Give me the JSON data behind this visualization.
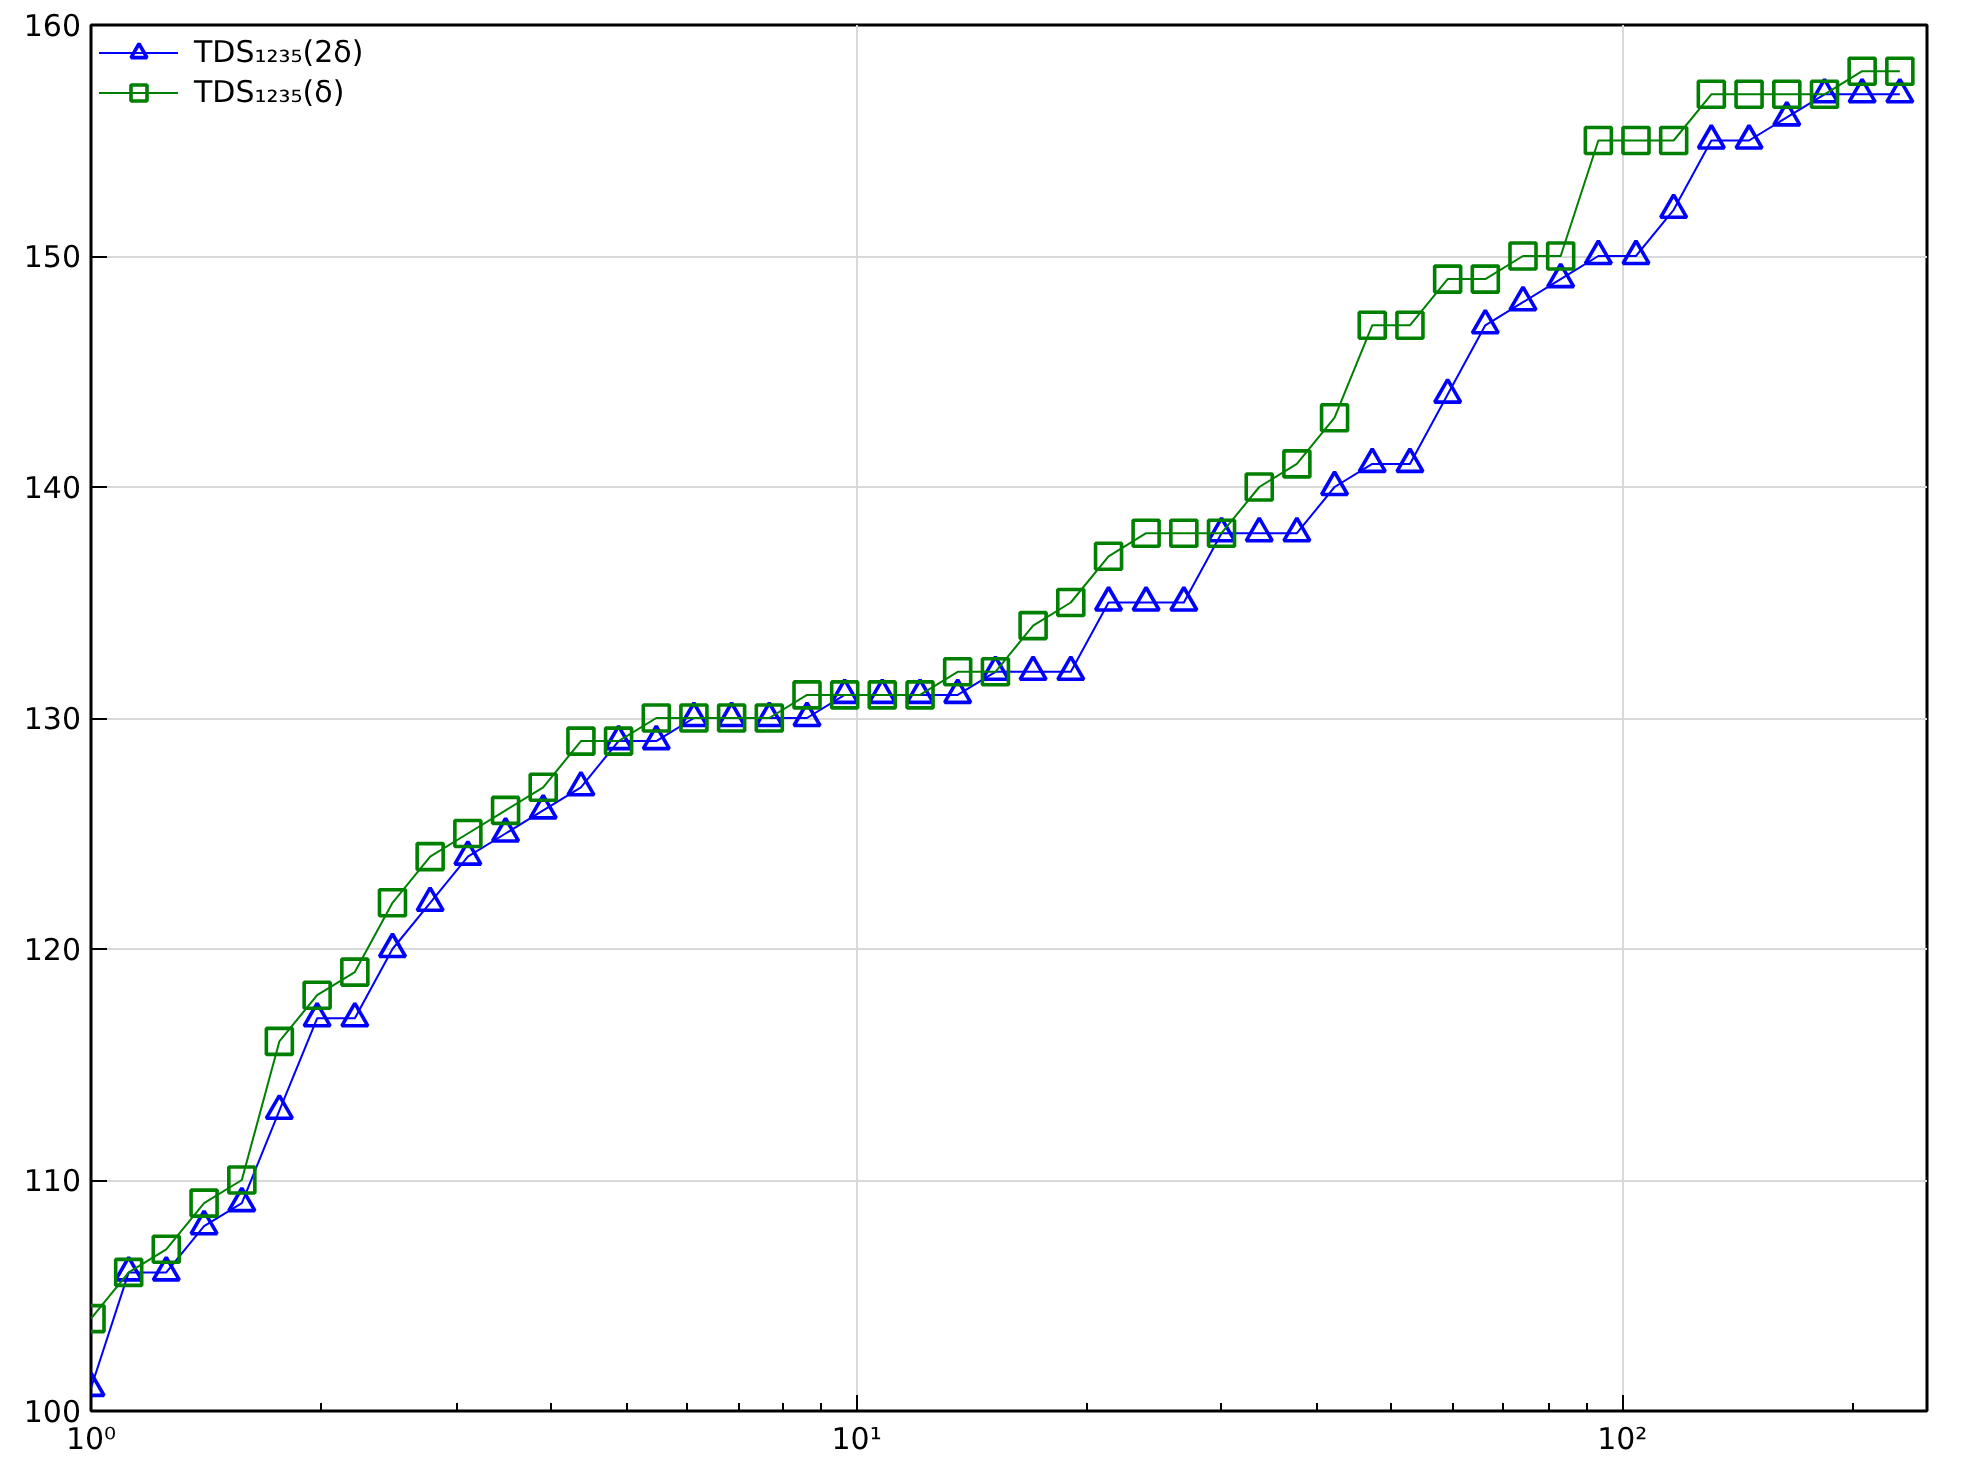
{
  "chart_data": {
    "type": "line",
    "log": "x",
    "x": [
      1,
      1.12,
      1.254,
      1.405,
      1.574,
      1.762,
      1.974,
      2.211,
      2.476,
      2.773,
      3.106,
      3.479,
      3.896,
      4.364,
      4.887,
      5.474,
      6.13,
      6.866,
      7.69,
      8.613,
      9.646,
      10.8,
      12.1,
      13.55,
      15.18,
      17.0,
      19.04,
      21.33,
      23.88,
      26.75,
      29.96,
      33.56,
      37.58,
      42.09,
      47.14,
      52.8,
      59.14,
      66.23,
      74.18,
      83.08,
      93.05,
      104.2,
      116.7,
      130.7,
      146.4,
      164.0,
      183.7,
      205.7,
      230.4
    ],
    "series": [
      {
        "name": "TDS₁₂₃₅(2δ)",
        "color": "#0000ff",
        "marker": "triangle",
        "values": [
          101,
          106,
          106,
          108,
          109,
          113,
          117,
          117,
          120,
          122,
          124,
          125,
          126,
          127,
          129,
          129,
          130,
          130,
          130,
          130,
          131,
          131,
          131,
          131,
          132,
          132,
          132,
          135,
          135,
          135,
          138,
          138,
          138,
          140,
          141,
          141,
          144,
          147,
          148,
          149,
          150,
          150,
          152,
          155,
          155,
          156,
          157,
          157,
          157
        ]
      },
      {
        "name": "TDS₁₂₃₅(δ)",
        "color": "#008000",
        "marker": "square",
        "values": [
          104,
          106,
          107,
          109,
          110,
          116,
          118,
          119,
          122,
          124,
          125,
          126,
          127,
          129,
          129,
          130,
          130,
          130,
          130,
          131,
          131,
          131,
          131,
          132,
          132,
          134,
          135,
          137,
          138,
          138,
          138,
          140,
          141,
          143,
          147,
          147,
          149,
          149,
          150,
          150,
          155,
          155,
          155,
          157,
          157,
          157,
          157,
          158,
          158
        ]
      }
    ],
    "xlim": [
      1,
      250
    ],
    "ylim": [
      100,
      160
    ],
    "xticks": [
      {
        "value": 1,
        "label": "10⁰"
      },
      {
        "value": 10,
        "label": "10¹"
      },
      {
        "value": 100,
        "label": "10²"
      }
    ],
    "yticks": [
      100,
      110,
      120,
      130,
      140,
      150,
      160
    ],
    "grid": true,
    "legend": "top left",
    "line_style": "solid"
  }
}
